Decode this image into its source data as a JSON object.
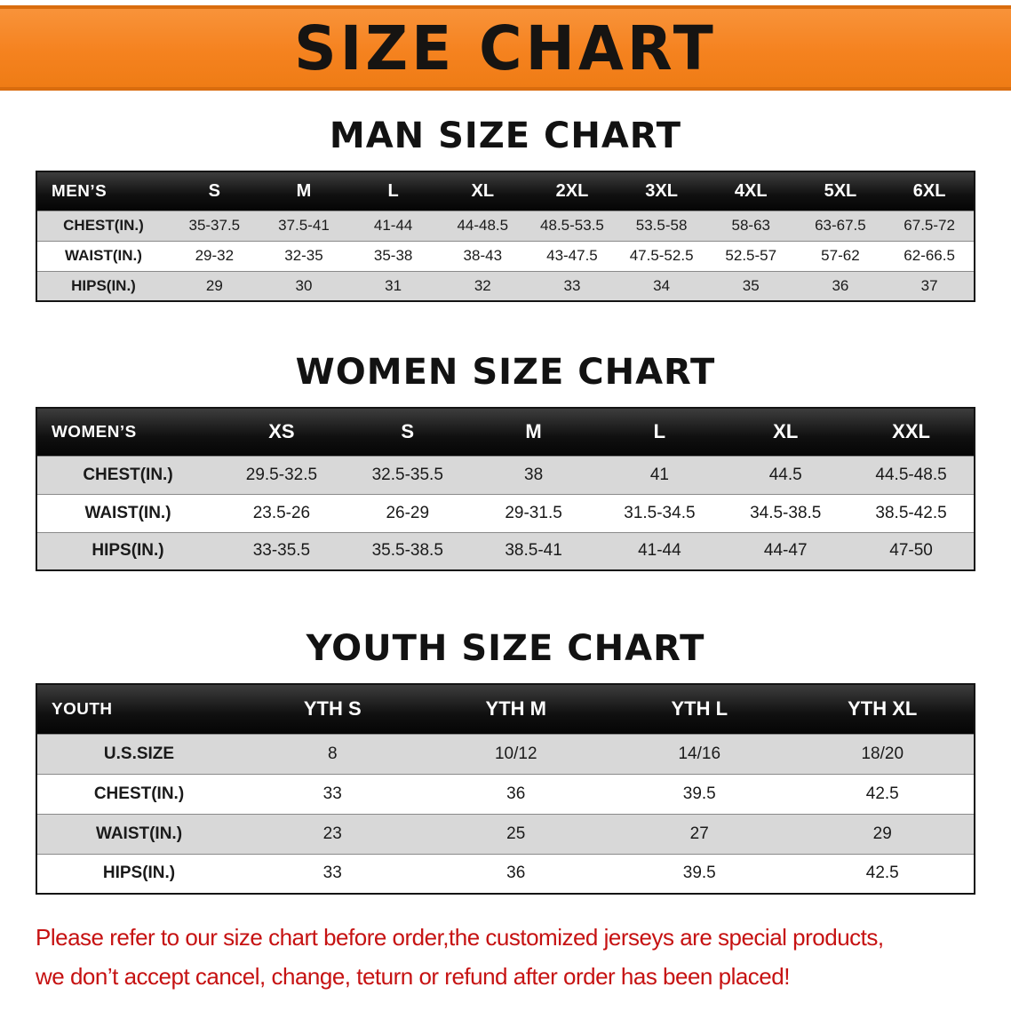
{
  "page": {
    "banner_title": "SIZE CHART",
    "footer_lines": [
      "Please refer to our size chart before order,the customized jerseys are special products,",
      "we don’t accept cancel, change, teturn or refund after order has been placed!"
    ]
  },
  "colors": {
    "banner_bg": "#F5821F",
    "banner_border": "#D96C0E",
    "table_header_bg": "#101010",
    "row_alt_bg": "#D8D8D8",
    "footer_text": "#C61212"
  },
  "sections": [
    {
      "title": "MAN SIZE CHART",
      "table": {
        "header_label": "MEN’S",
        "columns": [
          "S",
          "M",
          "L",
          "XL",
          "2XL",
          "3XL",
          "4XL",
          "5XL",
          "6XL"
        ],
        "rows": [
          {
            "label": "CHEST(IN.)",
            "values": [
              "35-37.5",
              "37.5-41",
              "41-44",
              "44-48.5",
              "48.5-53.5",
              "53.5-58",
              "58-63",
              "63-67.5",
              "67.5-72"
            ]
          },
          {
            "label": "WAIST(IN.)",
            "values": [
              "29-32",
              "32-35",
              "35-38",
              "38-43",
              "43-47.5",
              "47.5-52.5",
              "52.5-57",
              "57-62",
              "62-66.5"
            ]
          },
          {
            "label": "HIPS(IN.)",
            "values": [
              "29",
              "30",
              "31",
              "32",
              "33",
              "34",
              "35",
              "36",
              "37"
            ]
          }
        ]
      }
    },
    {
      "title": "WOMEN SIZE CHART",
      "table": {
        "header_label": "WOMEN’S",
        "columns": [
          "XS",
          "S",
          "M",
          "L",
          "XL",
          "XXL"
        ],
        "rows": [
          {
            "label": "CHEST(IN.)",
            "values": [
              "29.5-32.5",
              "32.5-35.5",
              "38",
              "41",
              "44.5",
              "44.5-48.5"
            ]
          },
          {
            "label": "WAIST(IN.)",
            "values": [
              "23.5-26",
              "26-29",
              "29-31.5",
              "31.5-34.5",
              "34.5-38.5",
              "38.5-42.5"
            ]
          },
          {
            "label": "HIPS(IN.)",
            "values": [
              "33-35.5",
              "35.5-38.5",
              "38.5-41",
              "41-44",
              "44-47",
              "47-50"
            ]
          }
        ]
      }
    },
    {
      "title": "YOUTH SIZE CHART",
      "table": {
        "header_label": "YOUTH",
        "columns": [
          "YTH S",
          "YTH M",
          "YTH L",
          "YTH XL"
        ],
        "rows": [
          {
            "label": "U.S.SIZE",
            "values": [
              "8",
              "10/12",
              "14/16",
              "18/20"
            ]
          },
          {
            "label": "CHEST(IN.)",
            "values": [
              "33",
              "36",
              "39.5",
              "42.5"
            ]
          },
          {
            "label": "WAIST(IN.)",
            "values": [
              "23",
              "25",
              "27",
              "29"
            ]
          },
          {
            "label": "HIPS(IN.)",
            "values": [
              "33",
              "36",
              "39.5",
              "42.5"
            ]
          }
        ]
      }
    }
  ]
}
